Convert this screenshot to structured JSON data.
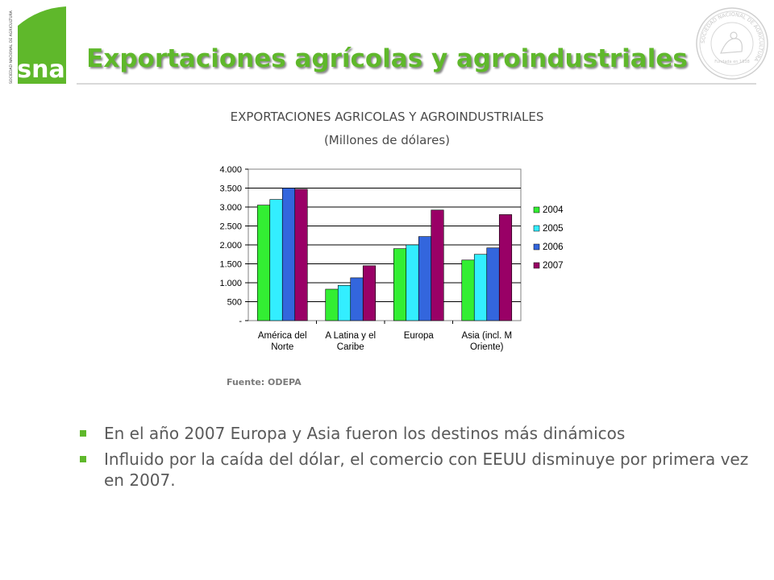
{
  "logo": {
    "text": "sna",
    "vertical_text": "SOCIEDAD NACIONAL DE AGRICULTURA",
    "color": "#5fb82b"
  },
  "seal": {
    "text": "SOCIEDAD NACIONAL DE AGRICULTURA",
    "sub": "Fundada en 1838"
  },
  "slide_title": "Exportaciones agrícolas y agroindustriales",
  "source": "Fuente: ODEPA",
  "bullets": [
    "En el año 2007 Europa y Asia fueron los destinos más dinámicos",
    "Influido por la caída del dólar, el comercio con EEUU disminuye por primera vez en 2007."
  ],
  "colors": {
    "accent": "#5fb82b",
    "s2004": "#33ee33",
    "s2005": "#33eeff",
    "s2006": "#3366dd",
    "s2007": "#990066"
  },
  "chart_data": {
    "type": "bar",
    "title": "EXPORTACIONES AGRICOLAS Y AGROINDUSTRIALES",
    "subtitle": "(Millones de dólares)",
    "categories": [
      [
        "América del",
        "Norte"
      ],
      [
        "A Latina y el",
        "Caribe"
      ],
      [
        "Europa"
      ],
      [
        "Asia (incl. M",
        "Oriente)"
      ]
    ],
    "series": [
      {
        "name": "2004",
        "color": "#33ee33",
        "values": [
          3050,
          830,
          1900,
          1600
        ]
      },
      {
        "name": "2005",
        "color": "#33eeff",
        "values": [
          3200,
          930,
          2000,
          1750
        ]
      },
      {
        "name": "2006",
        "color": "#3366dd",
        "values": [
          3500,
          1130,
          2220,
          1920
        ]
      },
      {
        "name": "2007",
        "color": "#990066",
        "values": [
          3470,
          1450,
          2920,
          2800
        ]
      }
    ],
    "yticks": [
      "-",
      "500",
      "1.000",
      "1.500",
      "2.000",
      "2.500",
      "3.000",
      "3.500",
      "4.000"
    ],
    "ylim": [
      0,
      4000
    ],
    "grid": true,
    "legend": "right"
  }
}
